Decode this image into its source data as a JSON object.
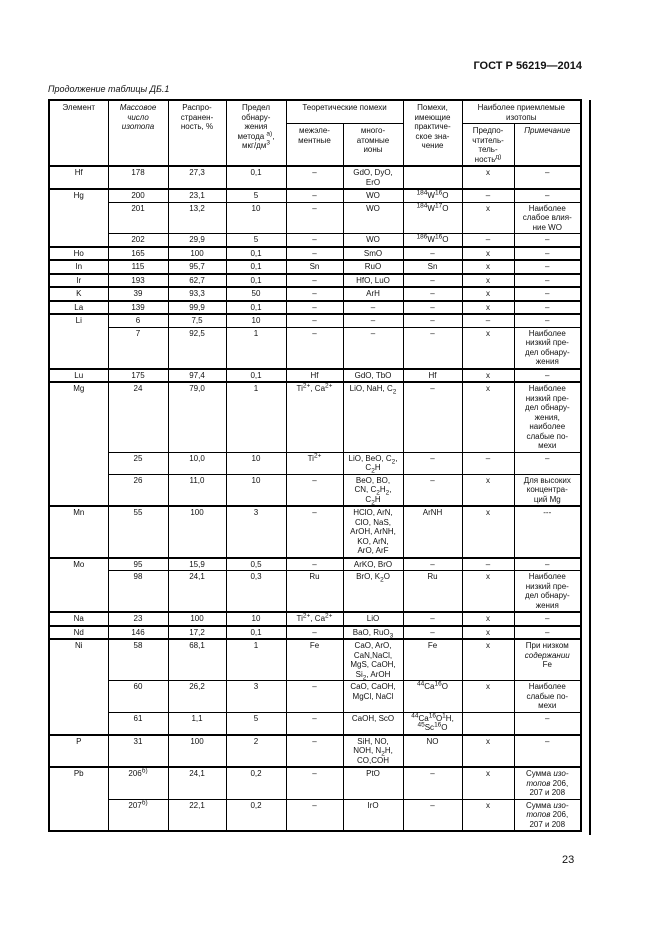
{
  "page": {
    "doc_number": "ГОСТ Р 56219—2014",
    "caption": "Продолжение таблицы ДБ.1",
    "page_number": "23"
  },
  "table": {
    "header": {
      "element": "Элемент",
      "mass": "Массовое\nчисло\nизотопа",
      "abundance": "Распро-\nстранен-\nность, %",
      "limit": "Предел\nобнару-\nжения\nметода ^{а)},\nмкг/дм^{3}",
      "theoretical": "Теоретические помехи",
      "interelement": "межэле-\nментные",
      "polyatomic": "много-\nатомные\nионы",
      "practical": "Помехи,\nимеющие\nпрактиче-\nское зна-\nчение",
      "acceptable": "Наиболее приемлемые\nизотопы",
      "preference": "Предпо-\nчтитель-\nтель-\nность^{д)}",
      "note": "Примечание"
    },
    "rows": [
      {
        "element": "Hf",
        "span": 1,
        "mass": "178",
        "abundance": "27,3",
        "limit": "0,1",
        "interelement": "–",
        "polyatomic": "GdO, DyO,\nErO",
        "practical": "",
        "preference": "x",
        "note": "–"
      },
      {
        "element": "Hg",
        "span": 3,
        "mass": "200",
        "abundance": "23,1",
        "limit": "5",
        "interelement": "–",
        "polyatomic": "WO",
        "practical": "^{184}W^{16}O",
        "preference": "–",
        "note": "–"
      },
      {
        "element": null,
        "span": 0,
        "mass": "201",
        "abundance": "13,2",
        "limit": "10",
        "interelement": "–",
        "polyatomic": "WO",
        "practical": "^{184}W^{17}O",
        "preference": "x",
        "note": "Наиболее\nслабое влия-\nние WO"
      },
      {
        "element": null,
        "span": 0,
        "mass": "202",
        "abundance": "29,9",
        "limit": "5",
        "interelement": "–",
        "polyatomic": "WO",
        "practical": "^{186}W^{16}O",
        "preference": "–",
        "note": "–"
      },
      {
        "element": "Ho",
        "span": 1,
        "mass": "165",
        "abundance": "100",
        "limit": "0,1",
        "interelement": "–",
        "polyatomic": "SmO",
        "practical": "–",
        "preference": "x",
        "note": "–"
      },
      {
        "element": "In",
        "span": 1,
        "mass": "115",
        "abundance": "95,7",
        "limit": "0,1",
        "interelement": "Sn",
        "polyatomic": "RuO",
        "practical": "Sn",
        "preference": "x",
        "note": "–"
      },
      {
        "element": "Ir",
        "span": 1,
        "mass": "193",
        "abundance": "62,7",
        "limit": "0,1",
        "interelement": "–",
        "polyatomic": "HfO, LuO",
        "practical": "–",
        "preference": "x",
        "note": "–"
      },
      {
        "element": "K",
        "span": 1,
        "mass": "39",
        "abundance": "93,3",
        "limit": "50",
        "interelement": "–",
        "polyatomic": "ArH",
        "practical": "–",
        "preference": "x",
        "note": "–"
      },
      {
        "element": "La",
        "span": 1,
        "mass": "139",
        "abundance": "99,9",
        "limit": "0,1",
        "interelement": "–",
        "polyatomic": "–",
        "practical": "–",
        "preference": "x",
        "note": "–"
      },
      {
        "element": "Li",
        "span": 2,
        "mass": "6",
        "abundance": "7,5",
        "limit": "10",
        "interelement": "–",
        "polyatomic": "–",
        "practical": "–",
        "preference": "–",
        "note": "–"
      },
      {
        "element": null,
        "span": 0,
        "mass": "7",
        "abundance": "92,5",
        "limit": "1",
        "interelement": "–",
        "polyatomic": "–",
        "practical": "–",
        "preference": "x",
        "note": "Наиболее\nнизкий пре-\nдел обнару-\nжения"
      },
      {
        "element": "Lu",
        "span": 1,
        "mass": "175",
        "abundance": "97,4",
        "limit": "0,1",
        "interelement": "Hf",
        "polyatomic": "GdO, TbO",
        "practical": "Hf",
        "preference": "x",
        "note": "–"
      },
      {
        "element": "Mg",
        "span": 3,
        "mass": "24",
        "abundance": "79,0",
        "limit": "1",
        "interelement": "Ti^{2+}, Ca^{2+}",
        "polyatomic": "LiO, NaH, C_{2}",
        "practical": "–",
        "preference": "x",
        "note": "Наиболее\nнизкий пре-\nдел обнару-\nжения,\nнаиболее\nслабые по-\nмехи"
      },
      {
        "element": null,
        "span": 0,
        "mass": "25",
        "abundance": "10,0",
        "limit": "10",
        "interelement": "Ti^{2+}",
        "polyatomic": "LiO, BeO, C_{2},\nC_{2}H",
        "practical": "–",
        "preference": "–",
        "note": "–"
      },
      {
        "element": null,
        "span": 0,
        "mass": "26",
        "abundance": "11,0",
        "limit": "10",
        "interelement": "–",
        "polyatomic": "BeO, BO,\nCN, C_{2}H_{2},\nC_{2}H",
        "practical": "–",
        "preference": "x",
        "note": "Для высоких\nконцентра-\nций Mg"
      },
      {
        "element": "Mn",
        "span": 1,
        "mass": "55",
        "abundance": "100",
        "limit": "3",
        "interelement": "–",
        "polyatomic": "HClO, ArN,\nClO, NaS,\nArOH, ArNH,\nKO, ArN,\nArO, ArF",
        "practical": "ArNH",
        "preference": "x",
        "note": "---"
      },
      {
        "element": "Mo",
        "span": 2,
        "mass": "95",
        "abundance": "15,9",
        "limit": "0,5",
        "interelement": "–",
        "polyatomic": "ArKO, BrO",
        "practical": "–",
        "preference": "–",
        "note": "–"
      },
      {
        "element": null,
        "span": 0,
        "mass": "98",
        "abundance": "24,1",
        "limit": "0,3",
        "interelement": "Ru",
        "polyatomic": "BrO, K_{2}O",
        "practical": "Ru",
        "preference": "x",
        "note": "Наиболее\nнизкий пре-\nдел обнару-\nжения"
      },
      {
        "element": "Na",
        "span": 1,
        "mass": "23",
        "abundance": "100",
        "limit": "10",
        "interelement": "Ti^{2+}, Ca^{2+}",
        "polyatomic": "LiO",
        "practical": "–",
        "preference": "x",
        "note": "–"
      },
      {
        "element": "Nd",
        "span": 1,
        "mass": "146",
        "abundance": "17,2",
        "limit": "0,1",
        "interelement": "–",
        "polyatomic": "BaO, RuO_{3}",
        "practical": "–",
        "preference": "x",
        "note": "–"
      },
      {
        "element": "Ni",
        "span": 3,
        "mass": "58",
        "abundance": "68,1",
        "limit": "1",
        "interelement": "Fe",
        "polyatomic": "CaO, ArO,\nCaN,NaCl,\nMgS, CaOH,\nSi_{2}, ArOH",
        "practical": "Fe",
        "preference": "x",
        "note": "При низком\n~{содержании}\nFe"
      },
      {
        "element": null,
        "span": 0,
        "mass": "60",
        "abundance": "26,2",
        "limit": "3",
        "interelement": "–",
        "polyatomic": "CaO, CaOH,\nMgCl, NaCl",
        "practical": "^{44}Ca^{16}O",
        "preference": "x",
        "note": "Наиболее\nслабые по-\nмехи"
      },
      {
        "element": null,
        "span": 0,
        "mass": "61",
        "abundance": "1,1",
        "limit": "5",
        "interelement": "–",
        "polyatomic": "CaOH, ScO",
        "practical": "^{44}Ca^{16}O^{1}H,\n^{45}Sc^{16}O",
        "preference": "",
        "note": "–"
      },
      {
        "element": "P",
        "span": 1,
        "mass": "31",
        "abundance": "100",
        "limit": "2",
        "interelement": "–",
        "polyatomic": "SiH, NO,\nNOH, N_{2}H,\nCO,COH",
        "practical": "NO",
        "preference": "x",
        "note": "–"
      },
      {
        "element": "Pb",
        "span": 2,
        "mass": "206^{б)}",
        "abundance": "24,1",
        "limit": "0,2",
        "interelement": "–",
        "polyatomic": "PtO",
        "practical": "–",
        "preference": "x",
        "note": "Сумма ~{изо-}\n~{топов} 206,\n207 и 208"
      },
      {
        "element": null,
        "span": 0,
        "mass": "207^{б)}",
        "abundance": "22,1",
        "limit": "0,2",
        "interelement": "–",
        "polyatomic": "IrO",
        "practical": "–",
        "preference": "x",
        "note": "Сумма ~{изо-}\n~{топов} 206,\n207 и 208"
      }
    ]
  }
}
